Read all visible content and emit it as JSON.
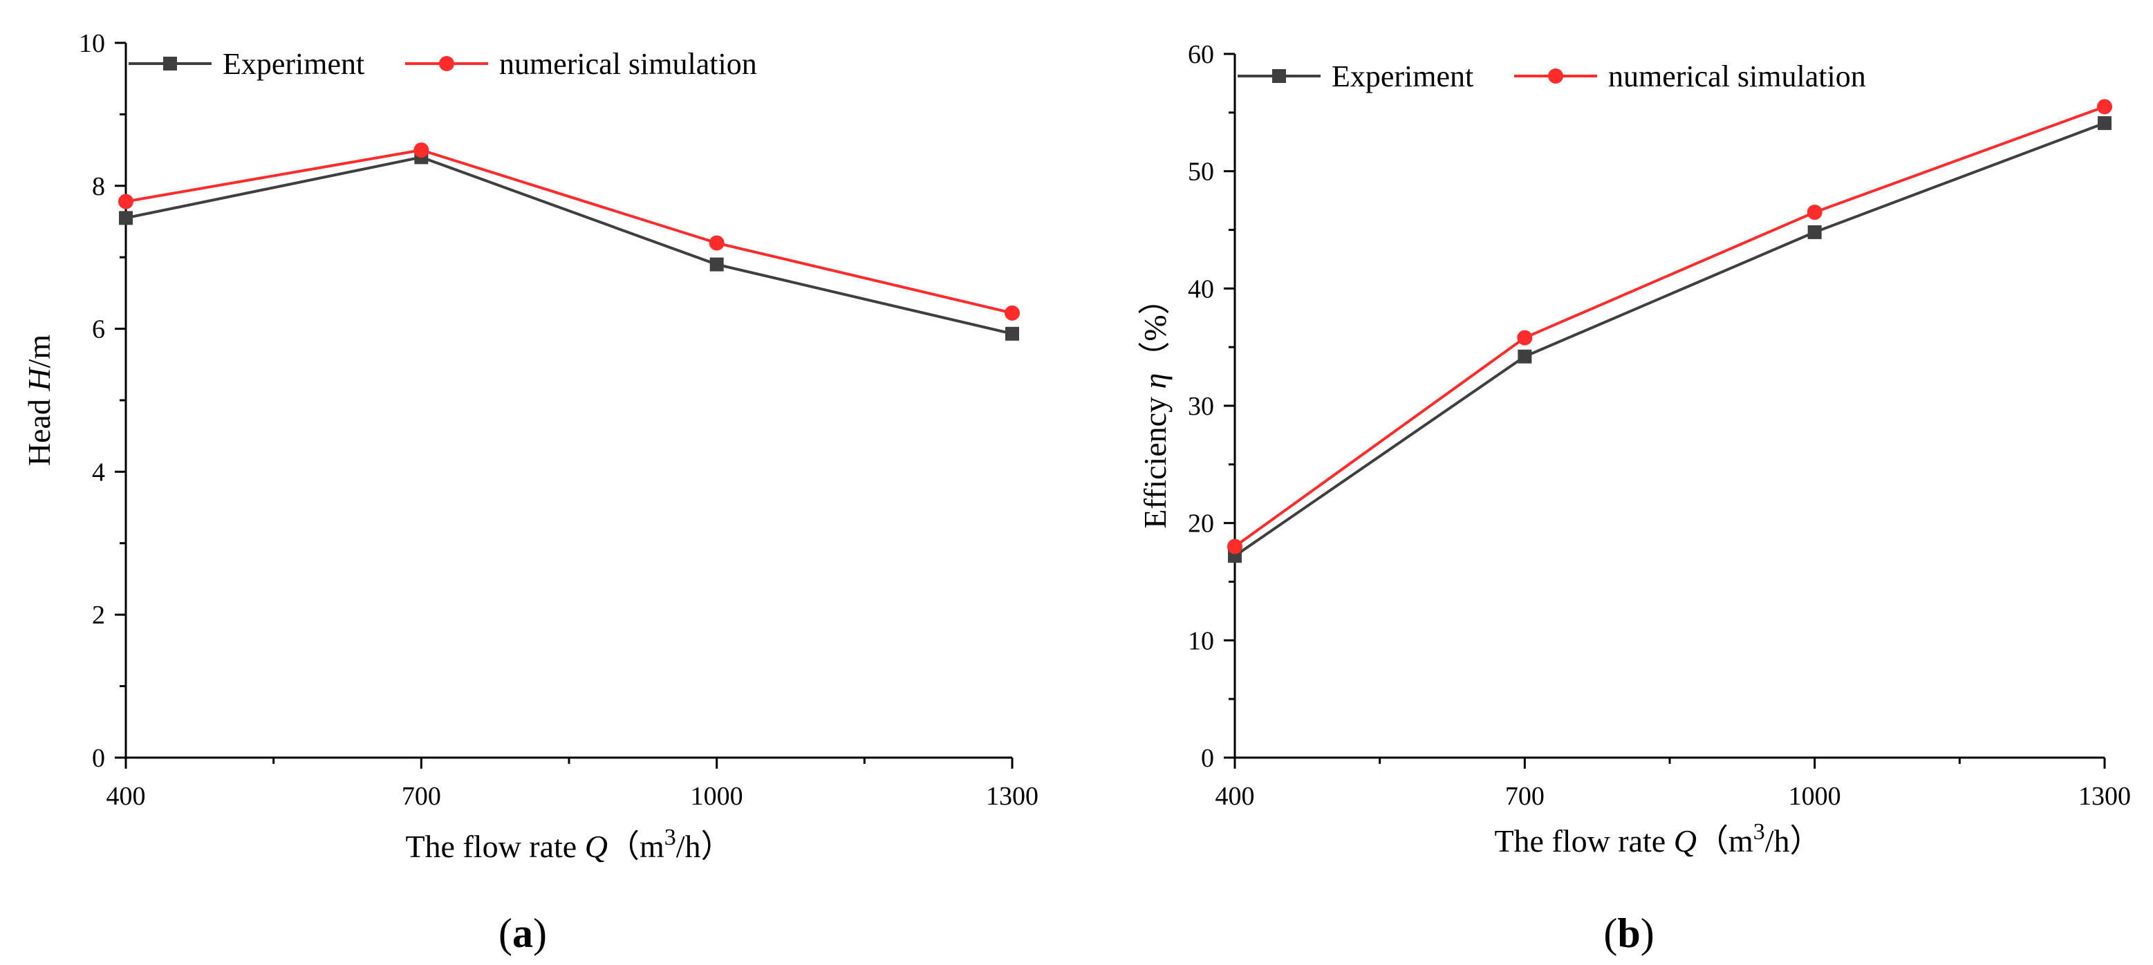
{
  "colors": {
    "experiment": "#3f3f3f",
    "simulation": "#ff2c2c",
    "axis": "#000000"
  },
  "chart_data": [
    {
      "id": "a",
      "type": "line",
      "panel_label": "a",
      "title": "",
      "xlabel": "The flow rate",
      "xlabel_var": "Q",
      "xlabel_unit_pre": "（m",
      "xlabel_unit_sup": "3",
      "xlabel_unit_post": "/h）",
      "ylabel_pre": "Head ",
      "ylabel_var": "H",
      "ylabel_post": "/m",
      "x": [
        400,
        700,
        1000,
        1300
      ],
      "xlim": [
        400,
        1300
      ],
      "ylim": [
        0,
        10
      ],
      "yticks": [
        0,
        2,
        4,
        6,
        8,
        10
      ],
      "xticks": [
        400,
        700,
        1000,
        1300
      ],
      "series": [
        {
          "name": "Experiment",
          "marker": "square",
          "values": [
            7.55,
            8.4,
            6.9,
            5.93
          ]
        },
        {
          "name": "numerical simulation",
          "marker": "circle",
          "values": [
            7.78,
            8.5,
            7.2,
            6.22
          ]
        }
      ],
      "legend": "top-left"
    },
    {
      "id": "b",
      "type": "line",
      "panel_label": "b",
      "title": "",
      "xlabel": "The flow rate",
      "xlabel_var": "Q",
      "xlabel_unit_pre": "（m",
      "xlabel_unit_sup": "3",
      "xlabel_unit_post": "/h）",
      "ylabel_pre": "Efficiency ",
      "ylabel_var": "η",
      "ylabel_post": "（%）",
      "x": [
        400,
        700,
        1000,
        1300
      ],
      "xlim": [
        400,
        1300
      ],
      "ylim": [
        0,
        60
      ],
      "yticks": [
        0,
        10,
        20,
        30,
        40,
        50,
        60
      ],
      "xticks": [
        400,
        700,
        1000,
        1300
      ],
      "series": [
        {
          "name": "Experiment",
          "marker": "square",
          "values": [
            17.2,
            34.2,
            44.8,
            54.1
          ]
        },
        {
          "name": "numerical simulation",
          "marker": "circle",
          "values": [
            18.0,
            35.8,
            46.5,
            55.5
          ]
        }
      ],
      "legend": "top-left"
    }
  ]
}
